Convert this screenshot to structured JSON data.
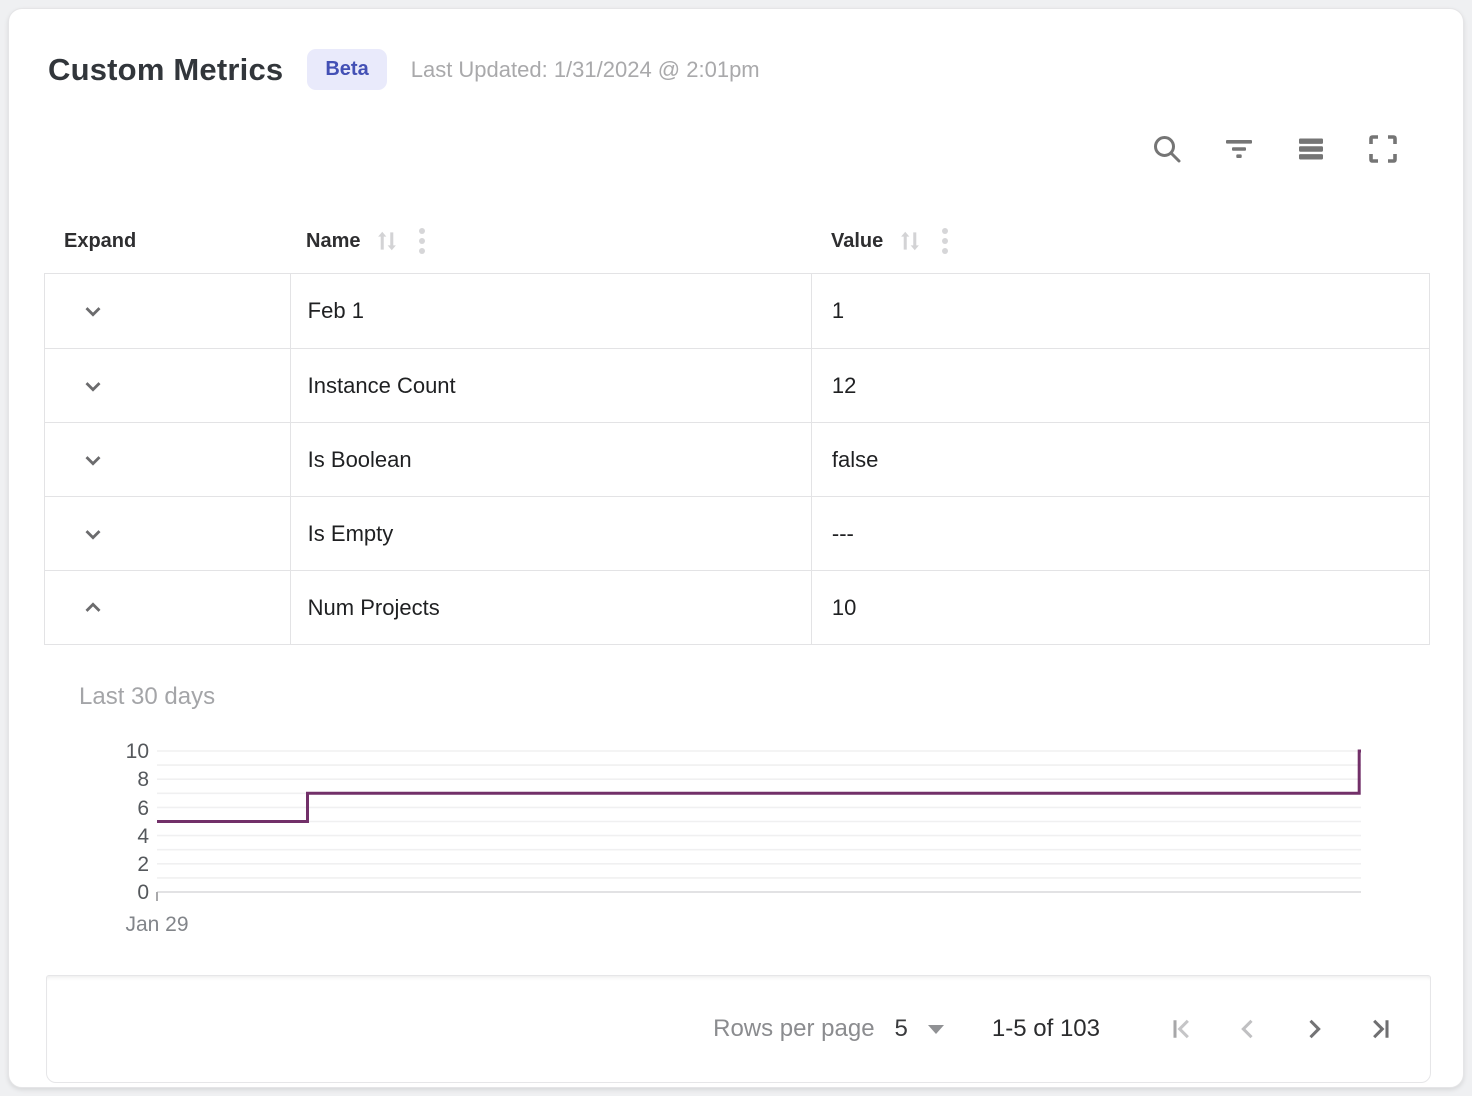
{
  "header": {
    "title": "Custom Metrics",
    "badge": "Beta",
    "last_updated": "Last Updated: 1/31/2024 @ 2:01pm"
  },
  "toolbar": {
    "icons": [
      "search",
      "filter",
      "density",
      "fullscreen"
    ],
    "icon_color": "#757575"
  },
  "table": {
    "columns": [
      {
        "label": "Expand",
        "sortable": false
      },
      {
        "label": "Name",
        "sortable": true
      },
      {
        "label": "Value",
        "sortable": true
      }
    ],
    "rows": [
      {
        "name": "Feb 1",
        "value": "1",
        "expanded": false
      },
      {
        "name": "Instance Count",
        "value": "12",
        "expanded": false
      },
      {
        "name": "Is Boolean",
        "value": "false",
        "expanded": false
      },
      {
        "name": "Is Empty",
        "value": "---",
        "expanded": false
      },
      {
        "name": "Num Projects",
        "value": "10",
        "expanded": true
      }
    ]
  },
  "chart_data": {
    "type": "line",
    "title": "Last 30 days",
    "line_style": "step",
    "color": "#723069",
    "x_tick_labels": [
      "Jan 29"
    ],
    "y_ticks": [
      0,
      2,
      4,
      6,
      8,
      10
    ],
    "ylim": [
      0,
      10
    ],
    "grid": "horizontal gridlines every 1 unit",
    "legend": "none",
    "points_note": "x is fraction of the 30-day span; step line: 5 then 7 then jumps to 10 at right edge",
    "points": [
      [
        0,
        5
      ],
      [
        0.125,
        5
      ],
      [
        0.125,
        7
      ],
      [
        0.9985,
        7
      ],
      [
        0.9985,
        10
      ],
      [
        1,
        10
      ]
    ]
  },
  "footer": {
    "rows_per_page_label": "Rows per page",
    "rows_per_page_value": "5",
    "range_label": "1-5 of 103",
    "pagination": {
      "first_enabled": false,
      "prev_enabled": false,
      "next_enabled": true,
      "last_enabled": true
    }
  }
}
